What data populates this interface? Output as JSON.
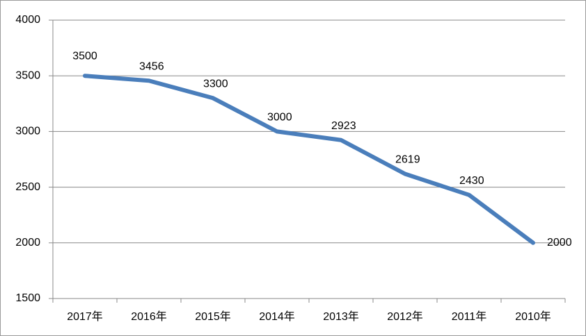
{
  "chart_data": {
    "type": "line",
    "categories": [
      "2017年",
      "2016年",
      "2015年",
      "2014年",
      "2013年",
      "2012年",
      "2011年",
      "2010年"
    ],
    "values": [
      3500,
      3456,
      3300,
      3000,
      2923,
      2619,
      2430,
      2000
    ],
    "color": "#4a7ebb",
    "ylim": [
      1500,
      4000
    ],
    "yticks": [
      1500,
      2000,
      2500,
      3000,
      3500,
      4000
    ],
    "grid": true
  }
}
